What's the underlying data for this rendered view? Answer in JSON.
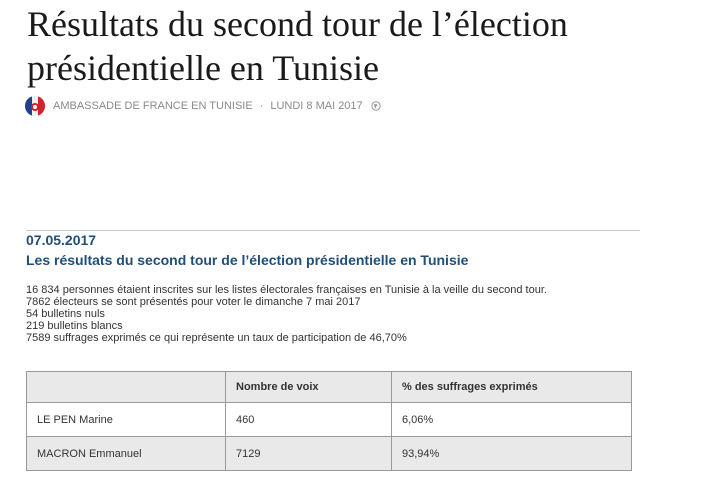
{
  "page": {
    "title": "Résultats du second tour de l’élection présidentielle en Tunisie",
    "author": "AMBASSADE DE FRANCE EN TUNISIE",
    "separator": "·",
    "date": "LUNDI 8 MAI 2017"
  },
  "article": {
    "date": "07.05.2017",
    "heading": "Les résultats du second tour de l’élection présidentielle en Tunisie",
    "stats": [
      "16 834 personnes étaient inscrites sur les listes électorales françaises en Tunisie à la veille du second tour.",
      "7862 électeurs se sont présentés pour voter le dimanche 7 mai 2017",
      "54 bulletins nuls",
      "219 bulletins blancs",
      "7589 suffrages exprimés ce qui représente un taux de participation de 46,70%"
    ]
  },
  "table": {
    "headers": [
      "",
      "Nombre de voix",
      "% des suffrages exprimés"
    ],
    "rows": [
      [
        "LE PEN Marine",
        "460",
        "6,06%"
      ],
      [
        "MACRON Emmanuel",
        "7129",
        "93,94%"
      ]
    ]
  },
  "icons": {
    "avatar": "embassy-avatar-icon",
    "globe": "globe-icon"
  }
}
